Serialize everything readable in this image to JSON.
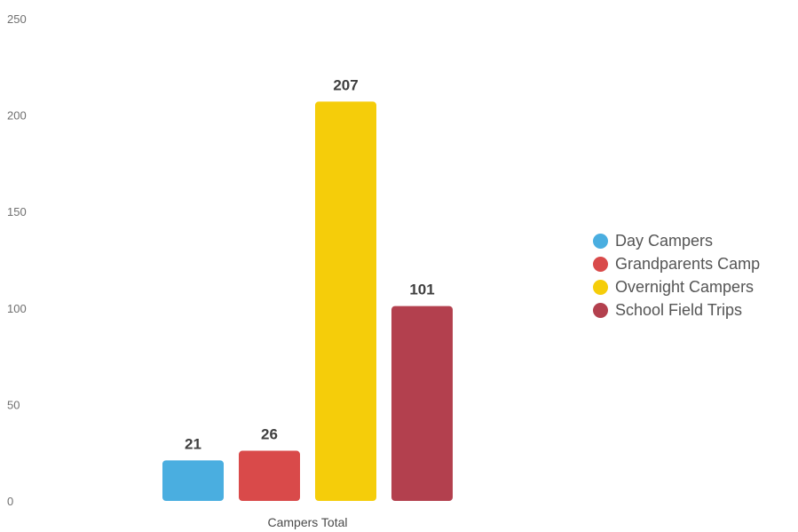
{
  "chart_data": {
    "type": "bar",
    "title": "",
    "xlabel": "",
    "ylabel": "",
    "ylim": [
      0,
      250
    ],
    "yticks": [
      0,
      50,
      100,
      150,
      200,
      250
    ],
    "grid": false,
    "legend_position": "right",
    "categories": [
      "Campers Total"
    ],
    "series": [
      {
        "name": "Day Campers",
        "values": [
          21
        ],
        "color": "#4aaee0"
      },
      {
        "name": "Grandparents Camp",
        "values": [
          26
        ],
        "color": "#d94a4a"
      },
      {
        "name": "Overnight Campers",
        "values": [
          207
        ],
        "color": "#f5cd0a"
      },
      {
        "name": "School Field Trips",
        "values": [
          101
        ],
        "color": "#b3404e"
      }
    ]
  }
}
